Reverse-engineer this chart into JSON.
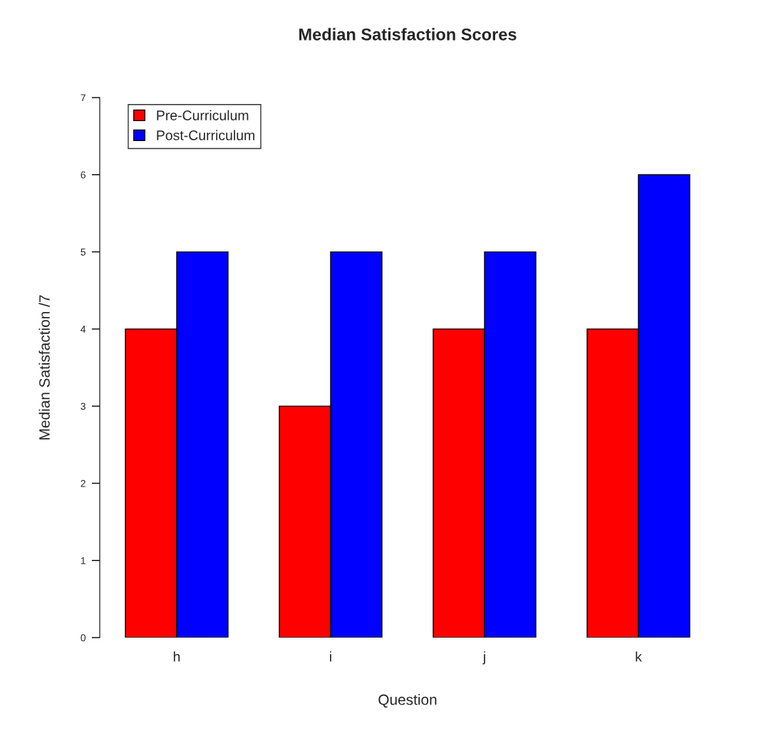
{
  "chart_data": {
    "type": "bar",
    "title": "Median Satisfaction Scores",
    "xlabel": "Question",
    "ylabel": "Median Satisfaction /7",
    "categories": [
      "h",
      "i",
      "j",
      "k"
    ],
    "series": [
      {
        "name": "Pre-Curriculum",
        "color": "#ff0000",
        "values": [
          4,
          3,
          4,
          4
        ]
      },
      {
        "name": "Post-Curriculum",
        "color": "#0000ff",
        "values": [
          5,
          5,
          5,
          6
        ]
      }
    ],
    "ylim": [
      0,
      7
    ],
    "yticks": [
      0,
      1,
      2,
      3,
      4,
      5,
      6,
      7
    ],
    "grid": false,
    "legend": "top left"
  }
}
